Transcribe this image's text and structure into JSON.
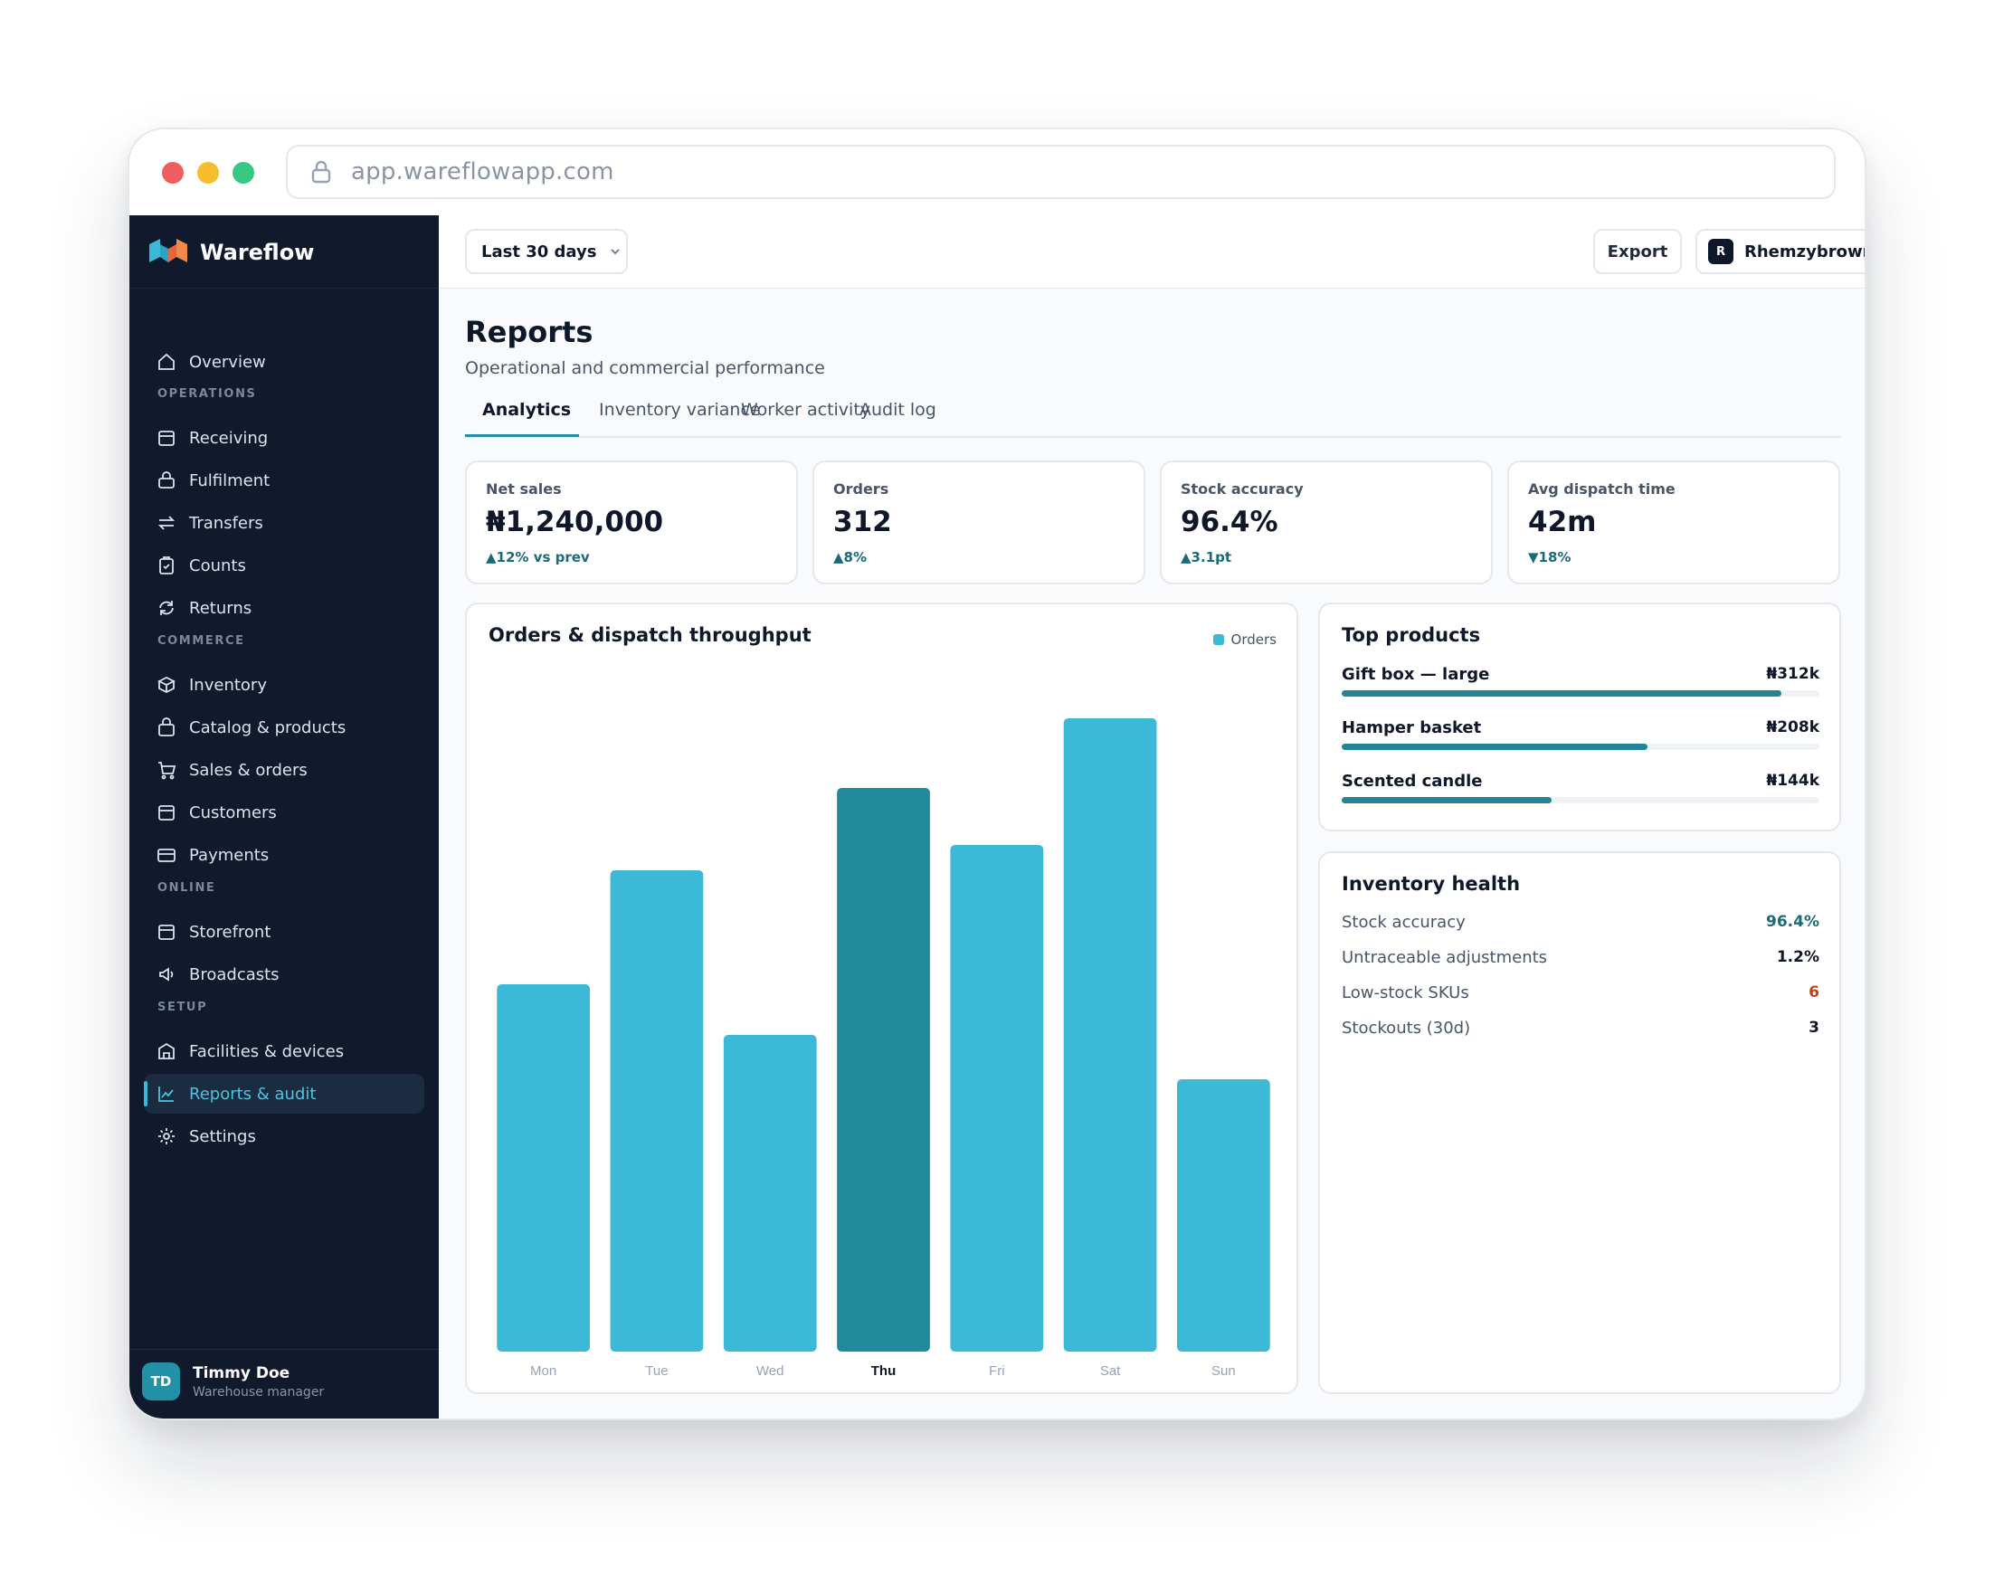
{
  "browser": {
    "url": "app.wareflowapp.com"
  },
  "brand": {
    "name": "Wareflow"
  },
  "sidebar": {
    "overview": "Overview",
    "sections": {
      "operations": "OPERATIONS",
      "commerce": "COMMERCE",
      "online": "ONLINE",
      "setup": "SETUP"
    },
    "items": {
      "receiving": "Receiving",
      "fulfilment": "Fulfilment",
      "transfers": "Transfers",
      "counts": "Counts",
      "returns": "Returns",
      "inventory": "Inventory",
      "catalog": "Catalog & products",
      "sales": "Sales & orders",
      "customers": "Customers",
      "payments": "Payments",
      "storefront": "Storefront",
      "broadcasts": "Broadcasts",
      "facilities": "Facilities & devices",
      "reports": "Reports & audit",
      "settings": "Settings"
    },
    "active_item": "reports",
    "user": {
      "initials": "TD",
      "name": "Timmy Doe",
      "role": "Warehouse manager"
    }
  },
  "topbar": {
    "range_label": "Last 30 days",
    "export_label": "Export",
    "user_initial": "R",
    "user_name": "Rhemzybrown"
  },
  "page": {
    "title": "Reports",
    "subtitle": "Operational and commercial performance",
    "tabs": [
      "Analytics",
      "Inventory variance",
      "Worker activity",
      "Audit log"
    ],
    "active_tab": 0
  },
  "kpis": [
    {
      "label": "Net sales",
      "value": "₦1,240,000",
      "delta": "▲12% vs prev"
    },
    {
      "label": "Orders",
      "value": "312",
      "delta": "▲8%"
    },
    {
      "label": "Stock accuracy",
      "value": "96.4%",
      "delta": "▲3.1pt"
    },
    {
      "label": "Avg dispatch time",
      "value": "42m",
      "delta": "▼18%"
    }
  ],
  "chart": {
    "title": "Orders & dispatch throughput",
    "legend": "Orders"
  },
  "chart_data": {
    "type": "bar",
    "title": "Orders & dispatch throughput",
    "categories": [
      "Mon",
      "Tue",
      "Wed",
      "Thu",
      "Fri",
      "Sat",
      "Sun"
    ],
    "series": [
      {
        "name": "Orders",
        "values": [
          58,
          76,
          50,
          89,
          80,
          100,
          43
        ]
      }
    ],
    "highlight": "Thu",
    "ylim": [
      0,
      100
    ],
    "grid": false,
    "legend_position": "top-right",
    "colors": {
      "bar": "#3bb9d6",
      "highlight": "#1f8a9b"
    }
  },
  "top_products": {
    "title": "Top products",
    "items": [
      {
        "name": "Gift box — large",
        "value": "₦312k",
        "share": 0.92
      },
      {
        "name": "Hamper basket",
        "value": "₦208k",
        "share": 0.64
      },
      {
        "name": "Scented candle",
        "value": "₦144k",
        "share": 0.44
      }
    ]
  },
  "inventory_health": {
    "title": "Inventory health",
    "rows": [
      {
        "label": "Stock accuracy",
        "value": "96.4%",
        "color": "#1a6b78"
      },
      {
        "label": "Untraceable adjustments",
        "value": "1.2%",
        "color": "#0f172a"
      },
      {
        "label": "Low-stock SKUs",
        "value": "6",
        "color": "#c2410c"
      },
      {
        "label": "Stockouts (30d)",
        "value": "3",
        "color": "#0f172a"
      }
    ]
  }
}
